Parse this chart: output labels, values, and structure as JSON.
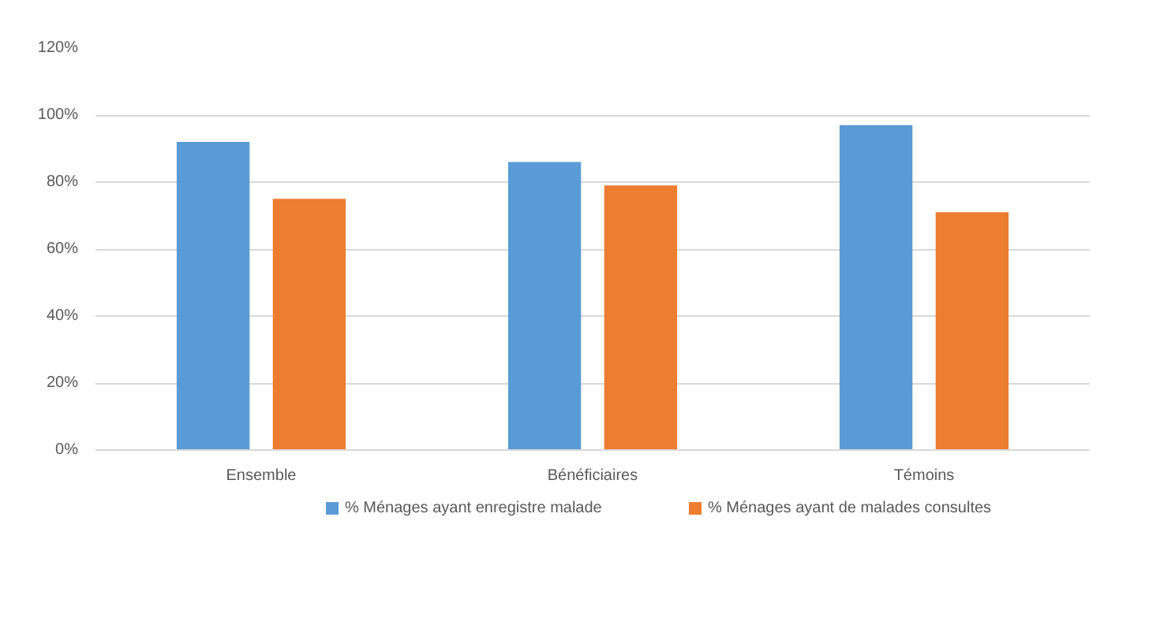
{
  "chart_data": {
    "type": "bar",
    "categories": [
      "Ensemble",
      "Bénéficiaires",
      "Témoins"
    ],
    "series": [
      {
        "name": "% Ménages ayant enregistre malade",
        "color": "#5b9bd5",
        "values": [
          92,
          86,
          97
        ]
      },
      {
        "name": "% Ménages ayant de malades consultes",
        "color": "#ed7d31",
        "values": [
          75,
          79,
          71
        ]
      }
    ],
    "ylim": [
      0,
      120
    ],
    "yticks": [
      {
        "value": 0,
        "label": "0%"
      },
      {
        "value": 20,
        "label": "20%"
      },
      {
        "value": 40,
        "label": "40%"
      },
      {
        "value": 60,
        "label": "60%"
      },
      {
        "value": 80,
        "label": "80%"
      },
      {
        "value": 100,
        "label": "100%"
      },
      {
        "value": 120,
        "label": "120%"
      }
    ],
    "grid": "y",
    "legend": "bottom"
  }
}
